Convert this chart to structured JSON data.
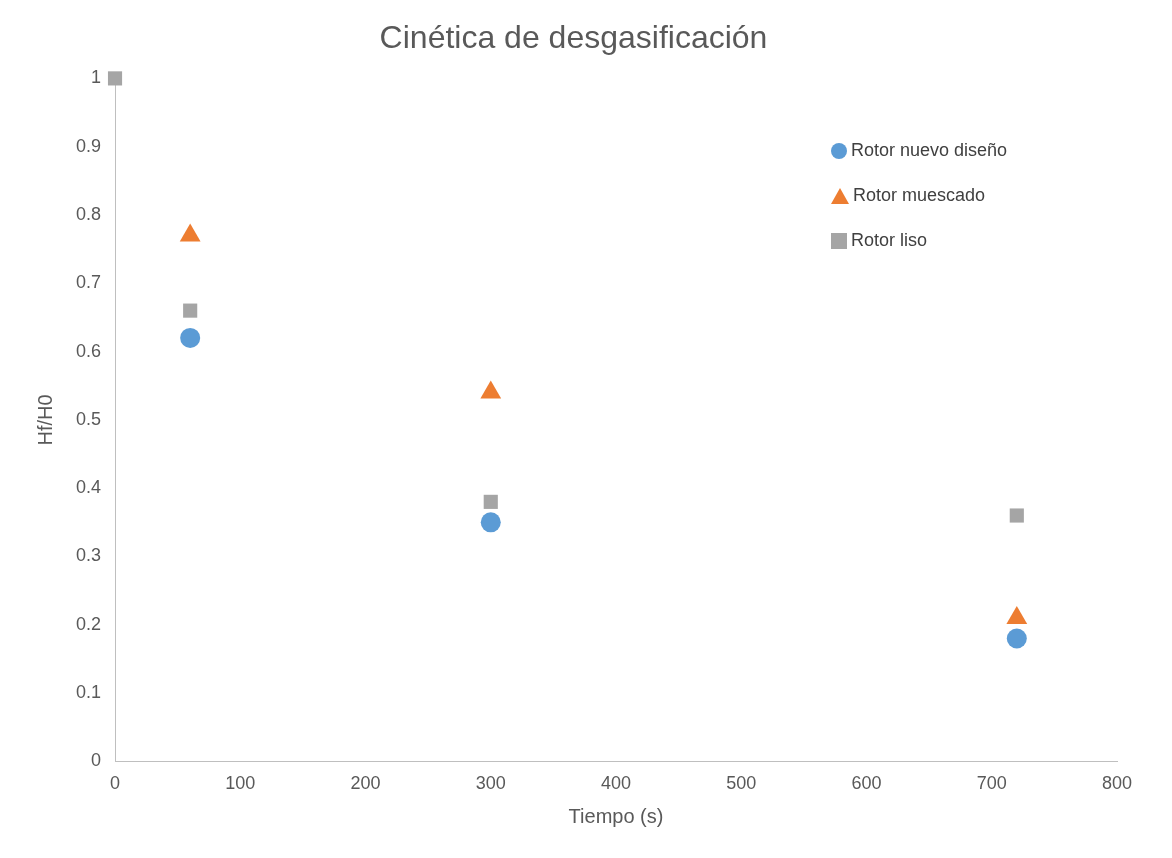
{
  "chart_data": {
    "type": "scatter",
    "title": "Cinética de desgasificación",
    "xlabel": "Tiempo (s)",
    "ylabel": "Hf/H0",
    "x": [
      0,
      60,
      300,
      720
    ],
    "series": [
      {
        "name": "Rotor nuevo diseño",
        "color": "#5b9bd5",
        "marker": "circle",
        "values": [
          null,
          0.62,
          0.35,
          0.18
        ]
      },
      {
        "name": "Rotor muescado",
        "color": "#ed7d31",
        "marker": "triangle",
        "values": [
          null,
          0.77,
          0.54,
          0.21
        ]
      },
      {
        "name": "Rotor liso",
        "color": "#a5a5a5",
        "marker": "square",
        "values": [
          1,
          0.66,
          0.38,
          0.36
        ]
      }
    ],
    "xlim": [
      0,
      800
    ],
    "xticks": [
      0,
      100,
      200,
      300,
      400,
      500,
      600,
      700,
      800
    ],
    "ylim": [
      0,
      1
    ],
    "yticks": [
      0,
      0.1,
      0.2,
      0.3,
      0.4,
      0.5,
      0.6,
      0.7,
      0.8,
      0.9,
      1
    ],
    "grid": false,
    "legend": "top right"
  }
}
